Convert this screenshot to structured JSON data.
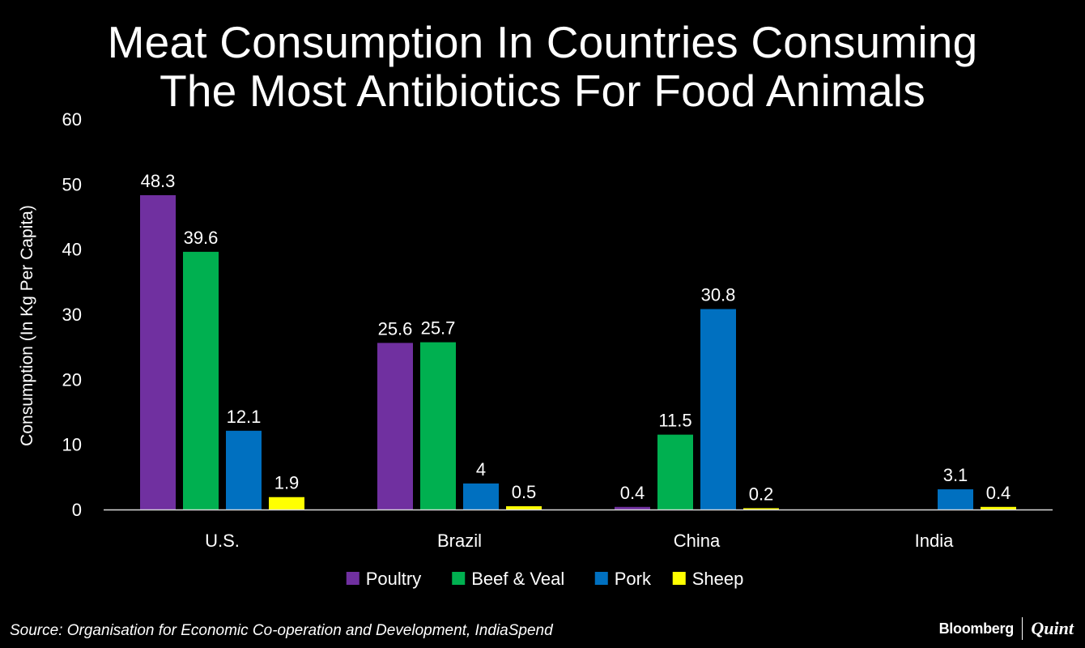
{
  "brand": {
    "left": "Bloomberg",
    "right": "Quint"
  },
  "source": "Source: Organisation for Economic Co-operation and Development, IndiaSpend",
  "chart_data": {
    "type": "bar",
    "title_lines": [
      "Meat Consumption In Countries Consuming",
      "The Most Antibiotics For Food Animals"
    ],
    "categories": [
      "U.S.",
      "Brazil",
      "China",
      "India"
    ],
    "series": [
      {
        "name": "Poultry",
        "color": "#7030a0",
        "values": [
          48.3,
          25.6,
          0.4,
          null
        ],
        "labels": [
          "48.3",
          "25.6",
          "0.4",
          ""
        ]
      },
      {
        "name": "Beef & Veal",
        "color": "#00b050",
        "values": [
          39.6,
          25.7,
          11.5,
          null
        ],
        "labels": [
          "39.6",
          "25.7",
          "11.5",
          ""
        ]
      },
      {
        "name": "Pork",
        "color": "#0070c0",
        "values": [
          12.1,
          4,
          30.8,
          3.1
        ],
        "labels": [
          "12.1",
          "4",
          "30.8",
          "3.1"
        ]
      },
      {
        "name": "Sheep",
        "color": "#ffff00",
        "values": [
          1.9,
          0.5,
          0.2,
          0.4
        ],
        "labels": [
          "1.9",
          "0.5",
          "0.2",
          "0.4"
        ]
      }
    ],
    "ylabel": "Consumption (In Kg Per Capita)",
    "xlabel": "",
    "ylim": [
      0,
      60
    ],
    "yticks": [
      "0",
      "10",
      "20",
      "30",
      "40",
      "50",
      "60"
    ],
    "legend_position": "bottom"
  }
}
